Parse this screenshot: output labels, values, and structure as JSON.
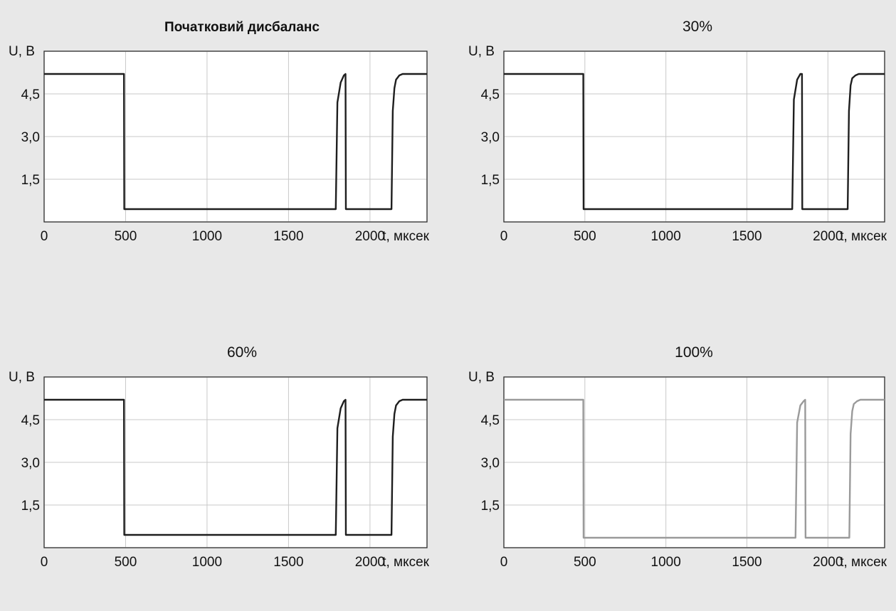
{
  "chart_data": [
    {
      "type": "line",
      "title": "Початковий дисбаланс",
      "title_bold": true,
      "ylabel": "U, В",
      "xlabel": "t, мксек",
      "xlim": [
        0,
        2350
      ],
      "ylim": [
        0,
        6.0
      ],
      "xticks": [
        0,
        500,
        1000,
        1500,
        2000
      ],
      "xtick_labels": [
        "0",
        "500",
        "1000",
        "1500",
        "2000"
      ],
      "yticks": [
        1.5,
        3.0,
        4.5
      ],
      "ytick_labels": [
        "1,5",
        "3,0",
        "4,5"
      ],
      "grid": true,
      "color": "#1e1e1e",
      "series": [
        {
          "x": [
            0,
            490,
            492,
            500,
            560,
            1770,
            1790,
            1800,
            1820,
            1840,
            1850,
            1852,
            1870,
            2130,
            2132,
            2140,
            2150,
            2160,
            2180,
            2200,
            2350
          ],
          "y": [
            5.2,
            5.2,
            0.45,
            0.45,
            0.45,
            0.45,
            0.45,
            4.2,
            4.9,
            5.15,
            5.2,
            0.45,
            0.45,
            0.45,
            0.45,
            3.9,
            4.7,
            5.0,
            5.15,
            5.2,
            5.2
          ]
        }
      ]
    },
    {
      "type": "line",
      "title": "30%",
      "ylabel": "U, В",
      "xlabel": "t, мксек",
      "xlim": [
        0,
        2350
      ],
      "ylim": [
        0,
        6.0
      ],
      "xticks": [
        0,
        500,
        1000,
        1500,
        2000
      ],
      "xtick_labels": [
        "0",
        "500",
        "1000",
        "1500",
        "2000"
      ],
      "yticks": [
        1.5,
        3.0,
        4.5
      ],
      "ytick_labels": [
        "1,5",
        "3,0",
        "4,5"
      ],
      "grid": true,
      "color": "#1e1e1e",
      "series": [
        {
          "x": [
            0,
            490,
            492,
            500,
            560,
            1760,
            1780,
            1790,
            1810,
            1830,
            1840,
            1842,
            1860,
            2120,
            2122,
            2130,
            2140,
            2150,
            2170,
            2190,
            2350
          ],
          "y": [
            5.2,
            5.2,
            0.45,
            0.45,
            0.45,
            0.45,
            0.45,
            4.3,
            5.0,
            5.2,
            5.2,
            0.45,
            0.45,
            0.45,
            0.45,
            3.9,
            4.8,
            5.05,
            5.15,
            5.2,
            5.2
          ]
        }
      ]
    },
    {
      "type": "line",
      "title": "60%",
      "ylabel": "U, В",
      "xlabel": "t, мксек",
      "xlim": [
        0,
        2350
      ],
      "ylim": [
        0,
        6.0
      ],
      "xticks": [
        0,
        500,
        1000,
        1500,
        2000
      ],
      "xtick_labels": [
        "0",
        "500",
        "1000",
        "1500",
        "2000"
      ],
      "yticks": [
        1.5,
        3.0,
        4.5
      ],
      "ytick_labels": [
        "1,5",
        "3,0",
        "4,5"
      ],
      "grid": true,
      "color": "#1e1e1e",
      "series": [
        {
          "x": [
            0,
            490,
            492,
            500,
            560,
            1770,
            1790,
            1800,
            1820,
            1840,
            1850,
            1852,
            1870,
            2130,
            2132,
            2140,
            2150,
            2160,
            2180,
            2200,
            2350
          ],
          "y": [
            5.2,
            5.2,
            0.45,
            0.45,
            0.45,
            0.45,
            0.45,
            4.2,
            4.9,
            5.15,
            5.2,
            0.45,
            0.45,
            0.45,
            0.45,
            3.9,
            4.7,
            5.0,
            5.15,
            5.2,
            5.2
          ]
        }
      ]
    },
    {
      "type": "line",
      "title": "100%",
      "ylabel": "U, В",
      "xlabel": "t, мксек",
      "xlim": [
        0,
        2350
      ],
      "ylim": [
        0,
        6.0
      ],
      "xticks": [
        0,
        500,
        1000,
        1500,
        2000
      ],
      "xtick_labels": [
        "0",
        "500",
        "1000",
        "1500",
        "2000"
      ],
      "yticks": [
        1.5,
        3.0,
        4.5
      ],
      "ytick_labels": [
        "1,5",
        "3,0",
        "4,5"
      ],
      "grid": true,
      "color": "#9a9a9a",
      "series": [
        {
          "x": [
            0,
            490,
            492,
            500,
            560,
            1780,
            1800,
            1810,
            1830,
            1850,
            1860,
            1862,
            1880,
            2130,
            2132,
            2140,
            2150,
            2160,
            2180,
            2200,
            2350
          ],
          "y": [
            5.2,
            5.2,
            0.35,
            0.35,
            0.35,
            0.35,
            0.35,
            4.4,
            5.0,
            5.15,
            5.2,
            0.35,
            0.35,
            0.35,
            0.35,
            4.0,
            4.8,
            5.05,
            5.15,
            5.2,
            5.2
          ]
        }
      ]
    }
  ]
}
